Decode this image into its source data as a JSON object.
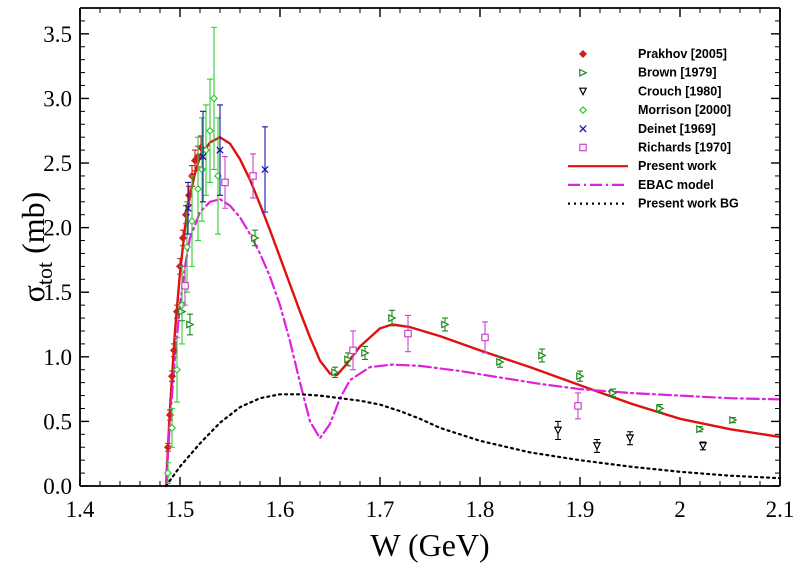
{
  "chart_data": {
    "type": "scatter",
    "xlabel": "W (GeV)",
    "ylabel_main": "σ",
    "ylabel_sub": "tot",
    "ylabel_unit": "(mb)",
    "xlim": [
      1.4,
      2.1
    ],
    "ylim": [
      0.0,
      3.7
    ],
    "x_ticks": [
      1.4,
      1.5,
      1.6,
      1.7,
      1.8,
      1.9,
      2.0,
      2.1
    ],
    "x_tick_labels": [
      "1.4",
      "1.5",
      "1.6",
      "1.7",
      "1.8",
      "1.9",
      "2",
      "2.1"
    ],
    "y_ticks": [
      0.0,
      0.5,
      1.0,
      1.5,
      2.0,
      2.5,
      3.0,
      3.5
    ],
    "y_tick_labels": [
      "0.0",
      "0.5",
      "1.0",
      "1.5",
      "2.0",
      "2.5",
      "3.0",
      "3.5"
    ],
    "grid": false,
    "legend_position": "top-right",
    "data_series": [
      {
        "name": "Prakhov [2005]",
        "marker": "diamond",
        "color": "#cc2020",
        "points": [
          [
            1.488,
            0.3,
            0.03
          ],
          [
            1.49,
            0.55,
            0.04
          ],
          [
            1.492,
            0.85,
            0.04
          ],
          [
            1.494,
            1.05,
            0.05
          ],
          [
            1.497,
            1.35,
            0.05
          ],
          [
            1.5,
            1.7,
            0.06
          ],
          [
            1.503,
            1.92,
            0.06
          ],
          [
            1.506,
            2.1,
            0.07
          ],
          [
            1.509,
            2.25,
            0.07
          ],
          [
            1.512,
            2.4,
            0.08
          ],
          [
            1.515,
            2.52,
            0.08
          ],
          [
            1.518,
            2.55,
            0.08
          ],
          [
            1.521,
            2.62,
            0.09
          ]
        ]
      },
      {
        "name": "Brown [1979]",
        "marker": "triangle-right",
        "color": "#1a8a1a",
        "points": [
          [
            1.502,
            1.35,
            0.07
          ],
          [
            1.51,
            1.25,
            0.08
          ],
          [
            1.575,
            1.92,
            0.06
          ],
          [
            1.655,
            0.88,
            0.04
          ],
          [
            1.668,
            0.98,
            0.05
          ],
          [
            1.685,
            1.03,
            0.05
          ],
          [
            1.712,
            1.3,
            0.06
          ],
          [
            1.765,
            1.25,
            0.05
          ],
          [
            1.82,
            0.96,
            0.04
          ],
          [
            1.862,
            1.01,
            0.05
          ],
          [
            1.9,
            0.85,
            0.04
          ],
          [
            1.933,
            0.72,
            0.03
          ],
          [
            1.98,
            0.6,
            0.03
          ],
          [
            2.02,
            0.44,
            0.02
          ],
          [
            2.053,
            0.51,
            0.02
          ]
        ]
      },
      {
        "name": "Crouch [1980]",
        "marker": "triangle-down",
        "color": "#000000",
        "points": [
          [
            1.878,
            0.43,
            0.07
          ],
          [
            1.917,
            0.31,
            0.05
          ],
          [
            1.95,
            0.37,
            0.05
          ],
          [
            2.023,
            0.31,
            0.03
          ]
        ]
      },
      {
        "name": "Morrison [2000]",
        "marker": "diamond-open",
        "color": "#33cc33",
        "points": [
          [
            1.488,
            0.1,
            0.08
          ],
          [
            1.492,
            0.45,
            0.15
          ],
          [
            1.497,
            0.9,
            0.25
          ],
          [
            1.502,
            1.4,
            0.3
          ],
          [
            1.507,
            1.85,
            0.35
          ],
          [
            1.512,
            2.05,
            0.35
          ],
          [
            1.518,
            2.3,
            0.4
          ],
          [
            1.522,
            2.45,
            0.4
          ],
          [
            1.526,
            2.6,
            0.35
          ],
          [
            1.53,
            2.75,
            0.4
          ],
          [
            1.534,
            3.0,
            0.55
          ],
          [
            1.538,
            2.4,
            0.45
          ]
        ]
      },
      {
        "name": "Deinet [1969]",
        "marker": "cross",
        "color": "#1a1aaa",
        "points": [
          [
            1.508,
            2.15,
            0.2
          ],
          [
            1.523,
            2.55,
            0.35
          ],
          [
            1.54,
            2.6,
            0.35
          ],
          [
            1.585,
            2.45,
            0.33
          ]
        ]
      },
      {
        "name": "Richards [1970]",
        "marker": "square-open",
        "color": "#cc44cc",
        "points": [
          [
            1.505,
            1.55,
            0.15
          ],
          [
            1.545,
            2.35,
            0.2
          ],
          [
            1.573,
            2.4,
            0.17
          ],
          [
            1.673,
            1.05,
            0.15
          ],
          [
            1.728,
            1.18,
            0.14
          ],
          [
            1.805,
            1.15,
            0.12
          ],
          [
            1.898,
            0.62,
            0.1
          ]
        ]
      }
    ],
    "curves": [
      {
        "name": "Present work",
        "style": "solid",
        "color": "#dd1111",
        "points": [
          [
            1.486,
            0.0
          ],
          [
            1.49,
            0.6
          ],
          [
            1.495,
            1.2
          ],
          [
            1.5,
            1.65
          ],
          [
            1.505,
            2.0
          ],
          [
            1.51,
            2.25
          ],
          [
            1.515,
            2.42
          ],
          [
            1.52,
            2.55
          ],
          [
            1.53,
            2.66
          ],
          [
            1.54,
            2.7
          ],
          [
            1.55,
            2.65
          ],
          [
            1.56,
            2.53
          ],
          [
            1.57,
            2.37
          ],
          [
            1.58,
            2.18
          ],
          [
            1.59,
            1.98
          ],
          [
            1.6,
            1.77
          ],
          [
            1.61,
            1.56
          ],
          [
            1.62,
            1.35
          ],
          [
            1.63,
            1.15
          ],
          [
            1.64,
            0.97
          ],
          [
            1.65,
            0.87
          ],
          [
            1.657,
            0.86
          ],
          [
            1.665,
            0.93
          ],
          [
            1.68,
            1.08
          ],
          [
            1.7,
            1.22
          ],
          [
            1.712,
            1.25
          ],
          [
            1.73,
            1.23
          ],
          [
            1.76,
            1.16
          ],
          [
            1.8,
            1.05
          ],
          [
            1.85,
            0.92
          ],
          [
            1.9,
            0.78
          ],
          [
            1.95,
            0.64
          ],
          [
            2.0,
            0.52
          ],
          [
            2.05,
            0.44
          ],
          [
            2.1,
            0.38
          ]
        ]
      },
      {
        "name": "EBAC model",
        "style": "dash-dot",
        "color": "#dd22dd",
        "points": [
          [
            1.486,
            0.0
          ],
          [
            1.49,
            0.5
          ],
          [
            1.495,
            1.0
          ],
          [
            1.5,
            1.4
          ],
          [
            1.505,
            1.7
          ],
          [
            1.51,
            1.92
          ],
          [
            1.52,
            2.12
          ],
          [
            1.53,
            2.2
          ],
          [
            1.54,
            2.22
          ],
          [
            1.55,
            2.17
          ],
          [
            1.56,
            2.08
          ],
          [
            1.57,
            1.95
          ],
          [
            1.58,
            1.8
          ],
          [
            1.59,
            1.62
          ],
          [
            1.6,
            1.4
          ],
          [
            1.61,
            1.12
          ],
          [
            1.62,
            0.8
          ],
          [
            1.63,
            0.5
          ],
          [
            1.64,
            0.37
          ],
          [
            1.65,
            0.48
          ],
          [
            1.66,
            0.68
          ],
          [
            1.67,
            0.82
          ],
          [
            1.69,
            0.92
          ],
          [
            1.712,
            0.94
          ],
          [
            1.74,
            0.93
          ],
          [
            1.78,
            0.89
          ],
          [
            1.82,
            0.84
          ],
          [
            1.86,
            0.79
          ],
          [
            1.9,
            0.75
          ],
          [
            1.95,
            0.72
          ],
          [
            2.0,
            0.7
          ],
          [
            2.05,
            0.68
          ],
          [
            2.1,
            0.67
          ]
        ]
      },
      {
        "name": "Present work BG",
        "style": "dotted",
        "color": "#000000",
        "points": [
          [
            1.486,
            0.0
          ],
          [
            1.5,
            0.15
          ],
          [
            1.52,
            0.33
          ],
          [
            1.54,
            0.49
          ],
          [
            1.56,
            0.61
          ],
          [
            1.58,
            0.68
          ],
          [
            1.6,
            0.71
          ],
          [
            1.62,
            0.71
          ],
          [
            1.64,
            0.7
          ],
          [
            1.66,
            0.68
          ],
          [
            1.68,
            0.66
          ],
          [
            1.7,
            0.63
          ],
          [
            1.72,
            0.58
          ],
          [
            1.74,
            0.52
          ],
          [
            1.76,
            0.45
          ],
          [
            1.8,
            0.35
          ],
          [
            1.85,
            0.26
          ],
          [
            1.9,
            0.2
          ],
          [
            1.95,
            0.15
          ],
          [
            2.0,
            0.11
          ],
          [
            2.05,
            0.08
          ],
          [
            2.1,
            0.06
          ]
        ]
      }
    ]
  }
}
